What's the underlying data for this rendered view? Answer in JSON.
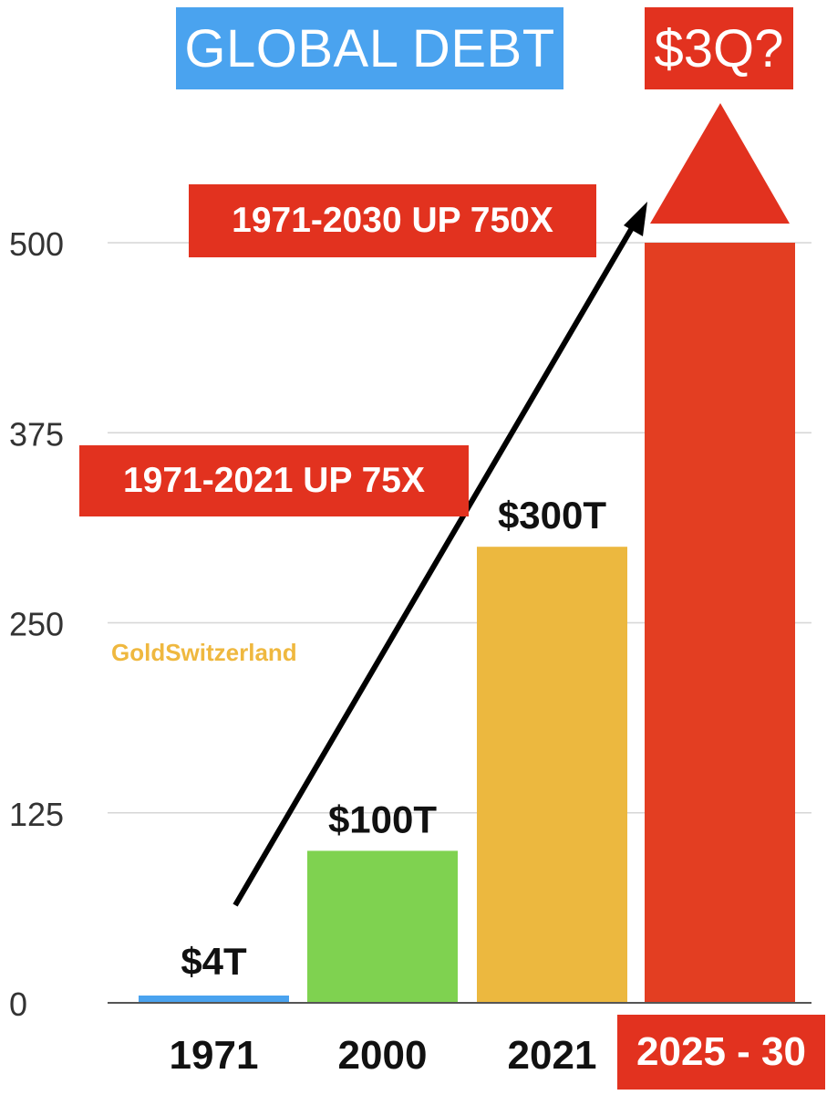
{
  "title": "GLOBAL DEBT",
  "question_badge": "$3Q?",
  "annotations": {
    "long_run": "1971-2030 UP 750X",
    "short_run": "1971-2021 UP 75X"
  },
  "watermark": "GoldSwitzerland",
  "chart_data": {
    "type": "bar",
    "title": "GLOBAL DEBT",
    "categories": [
      "1971",
      "2000",
      "2021",
      "2025 - 30"
    ],
    "values": [
      4,
      100,
      300,
      500
    ],
    "value_labels": [
      "$4T",
      "$100T",
      "$300T",
      ""
    ],
    "colors": [
      "#4aa3ef",
      "#7fd250",
      "#ecb83f",
      "#e33e22"
    ],
    "yticks": [
      0,
      125,
      250,
      375,
      500
    ],
    "ylim": [
      0,
      500
    ],
    "grid": true,
    "last_bar_extends_with_arrow": true,
    "xlabel": "",
    "ylabel": ""
  }
}
